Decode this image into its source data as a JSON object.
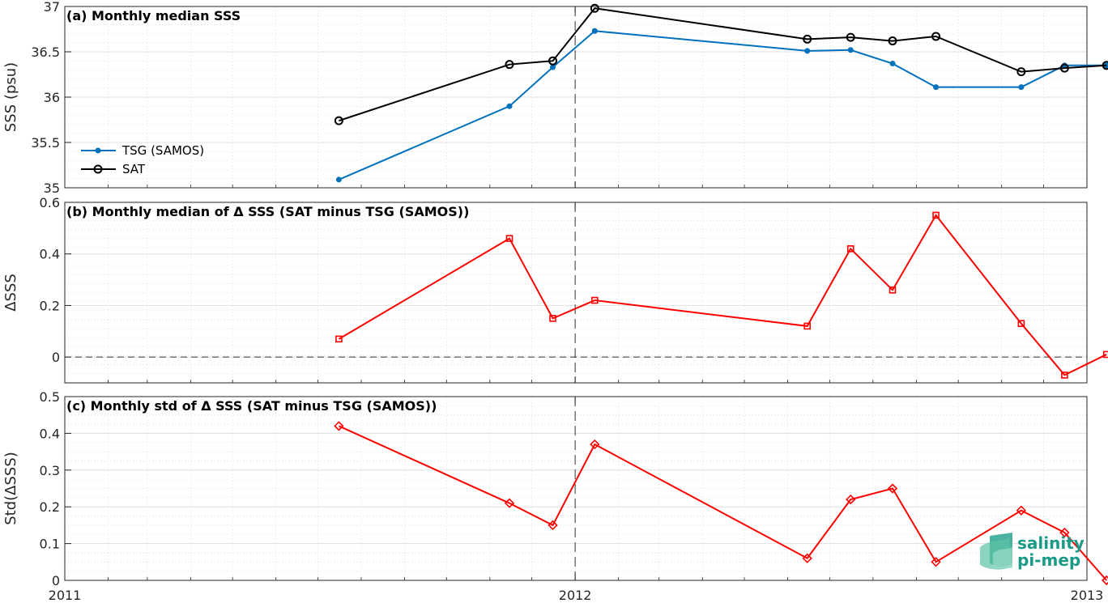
{
  "chart_data": [
    {
      "type": "line",
      "title": "(a) Monthly median SSS",
      "ylabel": "SSS (psu)",
      "xlim": [
        "2011-01-01",
        "2013-01-01"
      ],
      "ylim": [
        35,
        37
      ],
      "yticks": [
        "35",
        "35.5",
        "36",
        "36.5",
        "37"
      ],
      "grid": true,
      "legend": "left",
      "series": [
        {
          "name": "TSG (SAMOS)",
          "color": "#0072BD",
          "marker": "dot",
          "x": [
            "2011-07-16",
            "2011-11-15",
            "2011-12-16",
            "2012-01-15",
            "2012-06-15",
            "2012-07-16",
            "2012-08-15",
            "2012-09-15",
            "2012-11-15",
            "2012-12-16",
            "2013-01-15"
          ],
          "values": [
            35.09,
            35.9,
            36.33,
            36.73,
            36.51,
            36.52,
            36.37,
            36.11,
            36.11,
            36.35,
            36.35
          ]
        },
        {
          "name": "SAT",
          "color": "#000000",
          "marker": "circle",
          "x": [
            "2011-07-16",
            "2011-11-15",
            "2011-12-16",
            "2012-01-15",
            "2012-06-15",
            "2012-07-16",
            "2012-08-15",
            "2012-09-15",
            "2012-11-15",
            "2012-12-16",
            "2013-01-15"
          ],
          "values": [
            35.74,
            36.36,
            36.4,
            36.98,
            36.64,
            36.66,
            36.62,
            36.67,
            36.28,
            36.32,
            36.35
          ]
        }
      ]
    },
    {
      "type": "line",
      "title": "(b) Monthly median of Δ SSS (SAT minus TSG (SAMOS))",
      "ylabel": "ΔSSS",
      "xlim": [
        "2011-01-01",
        "2013-01-01"
      ],
      "ylim": [
        -0.1,
        0.6
      ],
      "yticks": [
        "0",
        "0.2",
        "0.4",
        "0.6"
      ],
      "zero_line": true,
      "grid": true,
      "series": [
        {
          "color": "#FF0000",
          "marker": "square",
          "x": [
            "2011-07-16",
            "2011-11-15",
            "2011-12-16",
            "2012-01-15",
            "2012-06-15",
            "2012-07-16",
            "2012-08-15",
            "2012-09-15",
            "2012-11-15",
            "2012-12-16",
            "2013-01-15"
          ],
          "values": [
            0.07,
            0.46,
            0.15,
            0.22,
            0.12,
            0.42,
            0.26,
            0.55,
            0.13,
            -0.07,
            0.01
          ]
        }
      ]
    },
    {
      "type": "line",
      "title": "(c) Monthly std of Δ SSS (SAT minus TSG (SAMOS))",
      "ylabel": "Std(ΔSSS)",
      "xlim": [
        "2011-01-01",
        "2013-01-01"
      ],
      "ylim": [
        0,
        0.5
      ],
      "yticks": [
        "0",
        "0.1",
        "0.2",
        "0.3",
        "0.4",
        "0.5"
      ],
      "xticks": [
        "2011",
        "2012",
        "2013"
      ],
      "grid": true,
      "series": [
        {
          "color": "#FF0000",
          "marker": "diamond",
          "x": [
            "2011-07-16",
            "2011-11-15",
            "2011-12-16",
            "2012-01-15",
            "2012-06-15",
            "2012-07-16",
            "2012-08-15",
            "2012-09-15",
            "2012-11-15",
            "2012-12-16",
            "2013-01-15"
          ],
          "values": [
            0.42,
            0.21,
            0.15,
            0.37,
            0.06,
            0.22,
            0.25,
            0.05,
            0.19,
            0.13,
            0.0
          ]
        }
      ]
    }
  ],
  "logo": {
    "line1": "salinity",
    "line2": "pi-mep",
    "color": "#1b9a87"
  }
}
